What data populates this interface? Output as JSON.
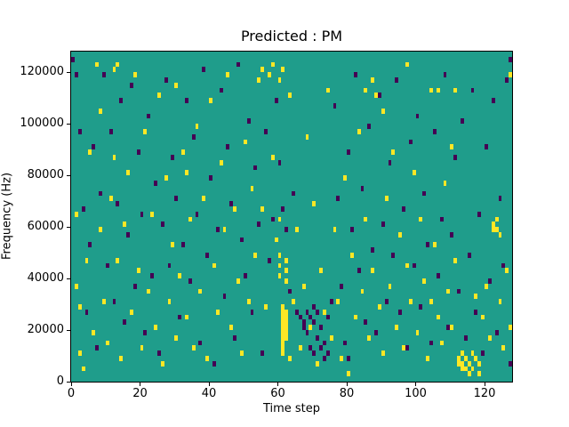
{
  "chart_data": {
    "type": "heatmap",
    "title": "Predicted : PM",
    "xlabel": "Time step",
    "ylabel": "Frequency (Hz)",
    "x_range": [
      0,
      128
    ],
    "y_range": [
      0,
      128000
    ],
    "x_ticks": [
      0,
      20,
      40,
      60,
      80,
      100,
      120
    ],
    "y_ticks": [
      0,
      20000,
      40000,
      60000,
      80000,
      100000,
      120000
    ],
    "grid": false,
    "legend": false,
    "cell_size": {
      "t": 1,
      "f": 2000
    },
    "colors": {
      "background": "#1f9d8b",
      "high": "#fde725",
      "low": "#440154"
    },
    "cells": {
      "yellow": [
        [
          1,
          64000
        ],
        [
          1,
          36000
        ],
        [
          2,
          28000
        ],
        [
          2,
          10000
        ],
        [
          3,
          4000
        ],
        [
          4,
          46000
        ],
        [
          5,
          88000
        ],
        [
          6,
          18000
        ],
        [
          7,
          122000
        ],
        [
          8,
          104000
        ],
        [
          8,
          58000
        ],
        [
          9,
          30000
        ],
        [
          10,
          14000
        ],
        [
          11,
          70000
        ],
        [
          12,
          120000
        ],
        [
          12,
          86000
        ],
        [
          13,
          122000
        ],
        [
          13,
          46000
        ],
        [
          14,
          8000
        ],
        [
          15,
          60000
        ],
        [
          16,
          80000
        ],
        [
          17,
          26000
        ],
        [
          18,
          118000
        ],
        [
          19,
          42000
        ],
        [
          20,
          12000
        ],
        [
          21,
          96000
        ],
        [
          22,
          34000
        ],
        [
          23,
          64000
        ],
        [
          24,
          20000
        ],
        [
          25,
          110000
        ],
        [
          26,
          6000
        ],
        [
          27,
          78000
        ],
        [
          28,
          30000
        ],
        [
          29,
          52000
        ],
        [
          30,
          114000
        ],
        [
          30,
          16000
        ],
        [
          31,
          40000
        ],
        [
          32,
          88000
        ],
        [
          33,
          80000
        ],
        [
          33,
          24000
        ],
        [
          34,
          62000
        ],
        [
          35,
          12000
        ],
        [
          36,
          98000
        ],
        [
          37,
          34000
        ],
        [
          38,
          70000
        ],
        [
          39,
          8000
        ],
        [
          40,
          108000
        ],
        [
          41,
          44000
        ],
        [
          42,
          26000
        ],
        [
          43,
          84000
        ],
        [
          44,
          58000
        ],
        [
          45,
          118000
        ],
        [
          46,
          20000
        ],
        [
          47,
          66000
        ],
        [
          48,
          38000
        ],
        [
          49,
          10000
        ],
        [
          50,
          92000
        ],
        [
          51,
          30000
        ],
        [
          52,
          74000
        ],
        [
          53,
          48000
        ],
        [
          54,
          116000
        ],
        [
          55,
          120000
        ],
        [
          55,
          66000
        ],
        [
          56,
          28000
        ],
        [
          57,
          118000
        ],
        [
          58,
          122000
        ],
        [
          58,
          86000
        ],
        [
          59,
          54000
        ],
        [
          60,
          116000
        ],
        [
          60,
          62000
        ],
        [
          60,
          48000
        ],
        [
          60,
          44000
        ],
        [
          60,
          40000
        ],
        [
          61,
          120000
        ],
        [
          61,
          28000
        ],
        [
          61,
          26000
        ],
        [
          61,
          24000
        ],
        [
          61,
          22000
        ],
        [
          61,
          20000
        ],
        [
          61,
          18000
        ],
        [
          61,
          16000
        ],
        [
          61,
          14000
        ],
        [
          61,
          12000
        ],
        [
          61,
          10000
        ],
        [
          62,
          46000
        ],
        [
          62,
          42000
        ],
        [
          62,
          38000
        ],
        [
          62,
          26000
        ],
        [
          62,
          24000
        ],
        [
          62,
          22000
        ],
        [
          62,
          20000
        ],
        [
          62,
          18000
        ],
        [
          62,
          16000
        ],
        [
          63,
          110000
        ],
        [
          63,
          8000
        ],
        [
          64,
          30000
        ],
        [
          65,
          58000
        ],
        [
          66,
          12000
        ],
        [
          67,
          36000
        ],
        [
          68,
          94000
        ],
        [
          69,
          20000
        ],
        [
          70,
          68000
        ],
        [
          71,
          6000
        ],
        [
          72,
          42000
        ],
        [
          73,
          26000
        ],
        [
          74,
          112000
        ],
        [
          75,
          16000
        ],
        [
          76,
          58000
        ],
        [
          77,
          30000
        ],
        [
          78,
          8000
        ],
        [
          79,
          78000
        ],
        [
          80,
          2000
        ],
        [
          81,
          48000
        ],
        [
          82,
          24000
        ],
        [
          83,
          96000
        ],
        [
          84,
          34000
        ],
        [
          85,
          112000
        ],
        [
          85,
          62000
        ],
        [
          86,
          16000
        ],
        [
          87,
          116000
        ],
        [
          87,
          42000
        ],
        [
          88,
          110000
        ],
        [
          89,
          28000
        ],
        [
          90,
          104000
        ],
        [
          90,
          10000
        ],
        [
          91,
          70000
        ],
        [
          92,
          36000
        ],
        [
          93,
          88000
        ],
        [
          94,
          20000
        ],
        [
          95,
          56000
        ],
        [
          96,
          12000
        ],
        [
          97,
          122000
        ],
        [
          97,
          44000
        ],
        [
          98,
          30000
        ],
        [
          99,
          80000
        ],
        [
          100,
          18000
        ],
        [
          101,
          62000
        ],
        [
          102,
          38000
        ],
        [
          103,
          8000
        ],
        [
          104,
          112000
        ],
        [
          104,
          30000
        ],
        [
          105,
          52000
        ],
        [
          106,
          112000
        ],
        [
          106,
          24000
        ],
        [
          107,
          14000
        ],
        [
          108,
          76000
        ],
        [
          109,
          34000
        ],
        [
          110,
          90000
        ],
        [
          110,
          20000
        ],
        [
          111,
          112000
        ],
        [
          111,
          46000
        ],
        [
          112,
          8000
        ],
        [
          112,
          6000
        ],
        [
          113,
          10000
        ],
        [
          113,
          6000
        ],
        [
          113,
          4000
        ],
        [
          114,
          8000
        ],
        [
          114,
          4000
        ],
        [
          115,
          6000
        ],
        [
          115,
          2000
        ],
        [
          116,
          10000
        ],
        [
          116,
          4000
        ],
        [
          117,
          32000
        ],
        [
          117,
          8000
        ],
        [
          118,
          6000
        ],
        [
          118,
          2000
        ],
        [
          119,
          24000
        ],
        [
          120,
          36000
        ],
        [
          121,
          16000
        ],
        [
          122,
          60000
        ],
        [
          122,
          58000
        ],
        [
          123,
          62000
        ],
        [
          123,
          58000
        ],
        [
          124,
          56000
        ],
        [
          124,
          30000
        ],
        [
          125,
          12000
        ],
        [
          126,
          42000
        ],
        [
          127,
          20000
        ],
        [
          127,
          118000
        ]
      ],
      "purple": [
        [
          0,
          124000
        ],
        [
          1,
          118000
        ],
        [
          2,
          96000
        ],
        [
          3,
          66000
        ],
        [
          4,
          26000
        ],
        [
          5,
          52000
        ],
        [
          6,
          90000
        ],
        [
          7,
          12000
        ],
        [
          8,
          72000
        ],
        [
          9,
          118000
        ],
        [
          10,
          44000
        ],
        [
          11,
          96000
        ],
        [
          12,
          30000
        ],
        [
          13,
          68000
        ],
        [
          14,
          108000
        ],
        [
          15,
          22000
        ],
        [
          16,
          56000
        ],
        [
          17,
          114000
        ],
        [
          18,
          36000
        ],
        [
          19,
          88000
        ],
        [
          20,
          64000
        ],
        [
          21,
          18000
        ],
        [
          22,
          102000
        ],
        [
          23,
          40000
        ],
        [
          24,
          76000
        ],
        [
          25,
          10000
        ],
        [
          26,
          60000
        ],
        [
          27,
          116000
        ],
        [
          28,
          44000
        ],
        [
          29,
          86000
        ],
        [
          30,
          70000
        ],
        [
          31,
          24000
        ],
        [
          32,
          52000
        ],
        [
          33,
          108000
        ],
        [
          34,
          38000
        ],
        [
          35,
          94000
        ],
        [
          36,
          64000
        ],
        [
          37,
          14000
        ],
        [
          38,
          120000
        ],
        [
          39,
          48000
        ],
        [
          40,
          78000
        ],
        [
          41,
          6000
        ],
        [
          42,
          58000
        ],
        [
          43,
          112000
        ],
        [
          44,
          32000
        ],
        [
          45,
          90000
        ],
        [
          46,
          68000
        ],
        [
          47,
          16000
        ],
        [
          48,
          122000
        ],
        [
          49,
          54000
        ],
        [
          50,
          40000
        ],
        [
          51,
          100000
        ],
        [
          52,
          26000
        ],
        [
          53,
          82000
        ],
        [
          54,
          60000
        ],
        [
          55,
          10000
        ],
        [
          56,
          96000
        ],
        [
          57,
          46000
        ],
        [
          58,
          62000
        ],
        [
          59,
          108000
        ],
        [
          60,
          84000
        ],
        [
          61,
          66000
        ],
        [
          62,
          58000
        ],
        [
          63,
          34000
        ],
        [
          64,
          72000
        ],
        [
          65,
          26000
        ],
        [
          66,
          24000
        ],
        [
          67,
          22000
        ],
        [
          67,
          20000
        ],
        [
          68,
          26000
        ],
        [
          68,
          18000
        ],
        [
          69,
          24000
        ],
        [
          69,
          12000
        ],
        [
          70,
          28000
        ],
        [
          70,
          22000
        ],
        [
          70,
          10000
        ],
        [
          71,
          26000
        ],
        [
          71,
          16000
        ],
        [
          72,
          20000
        ],
        [
          72,
          12000
        ],
        [
          73,
          14000
        ],
        [
          73,
          8000
        ],
        [
          74,
          24000
        ],
        [
          74,
          10000
        ],
        [
          75,
          30000
        ],
        [
          76,
          106000
        ],
        [
          77,
          70000
        ],
        [
          78,
          36000
        ],
        [
          79,
          14000
        ],
        [
          80,
          88000
        ],
        [
          80,
          8000
        ],
        [
          81,
          58000
        ],
        [
          82,
          118000
        ],
        [
          83,
          42000
        ],
        [
          84,
          74000
        ],
        [
          85,
          22000
        ],
        [
          86,
          98000
        ],
        [
          87,
          50000
        ],
        [
          88,
          18000
        ],
        [
          89,
          110000
        ],
        [
          90,
          60000
        ],
        [
          91,
          30000
        ],
        [
          92,
          84000
        ],
        [
          93,
          48000
        ],
        [
          94,
          116000
        ],
        [
          95,
          26000
        ],
        [
          96,
          66000
        ],
        [
          97,
          12000
        ],
        [
          98,
          92000
        ],
        [
          99,
          44000
        ],
        [
          100,
          102000
        ],
        [
          101,
          28000
        ],
        [
          102,
          72000
        ],
        [
          103,
          52000
        ],
        [
          104,
          14000
        ],
        [
          105,
          96000
        ],
        [
          106,
          40000
        ],
        [
          107,
          62000
        ],
        [
          108,
          118000
        ],
        [
          109,
          20000
        ],
        [
          110,
          56000
        ],
        [
          111,
          86000
        ],
        [
          112,
          34000
        ],
        [
          113,
          100000
        ],
        [
          114,
          16000
        ],
        [
          115,
          48000
        ],
        [
          116,
          112000
        ],
        [
          117,
          26000
        ],
        [
          118,
          64000
        ],
        [
          119,
          10000
        ],
        [
          120,
          90000
        ],
        [
          121,
          38000
        ],
        [
          122,
          108000
        ],
        [
          123,
          18000
        ],
        [
          124,
          70000
        ],
        [
          125,
          44000
        ],
        [
          126,
          116000
        ],
        [
          127,
          6000
        ],
        [
          127,
          124000
        ]
      ]
    }
  }
}
